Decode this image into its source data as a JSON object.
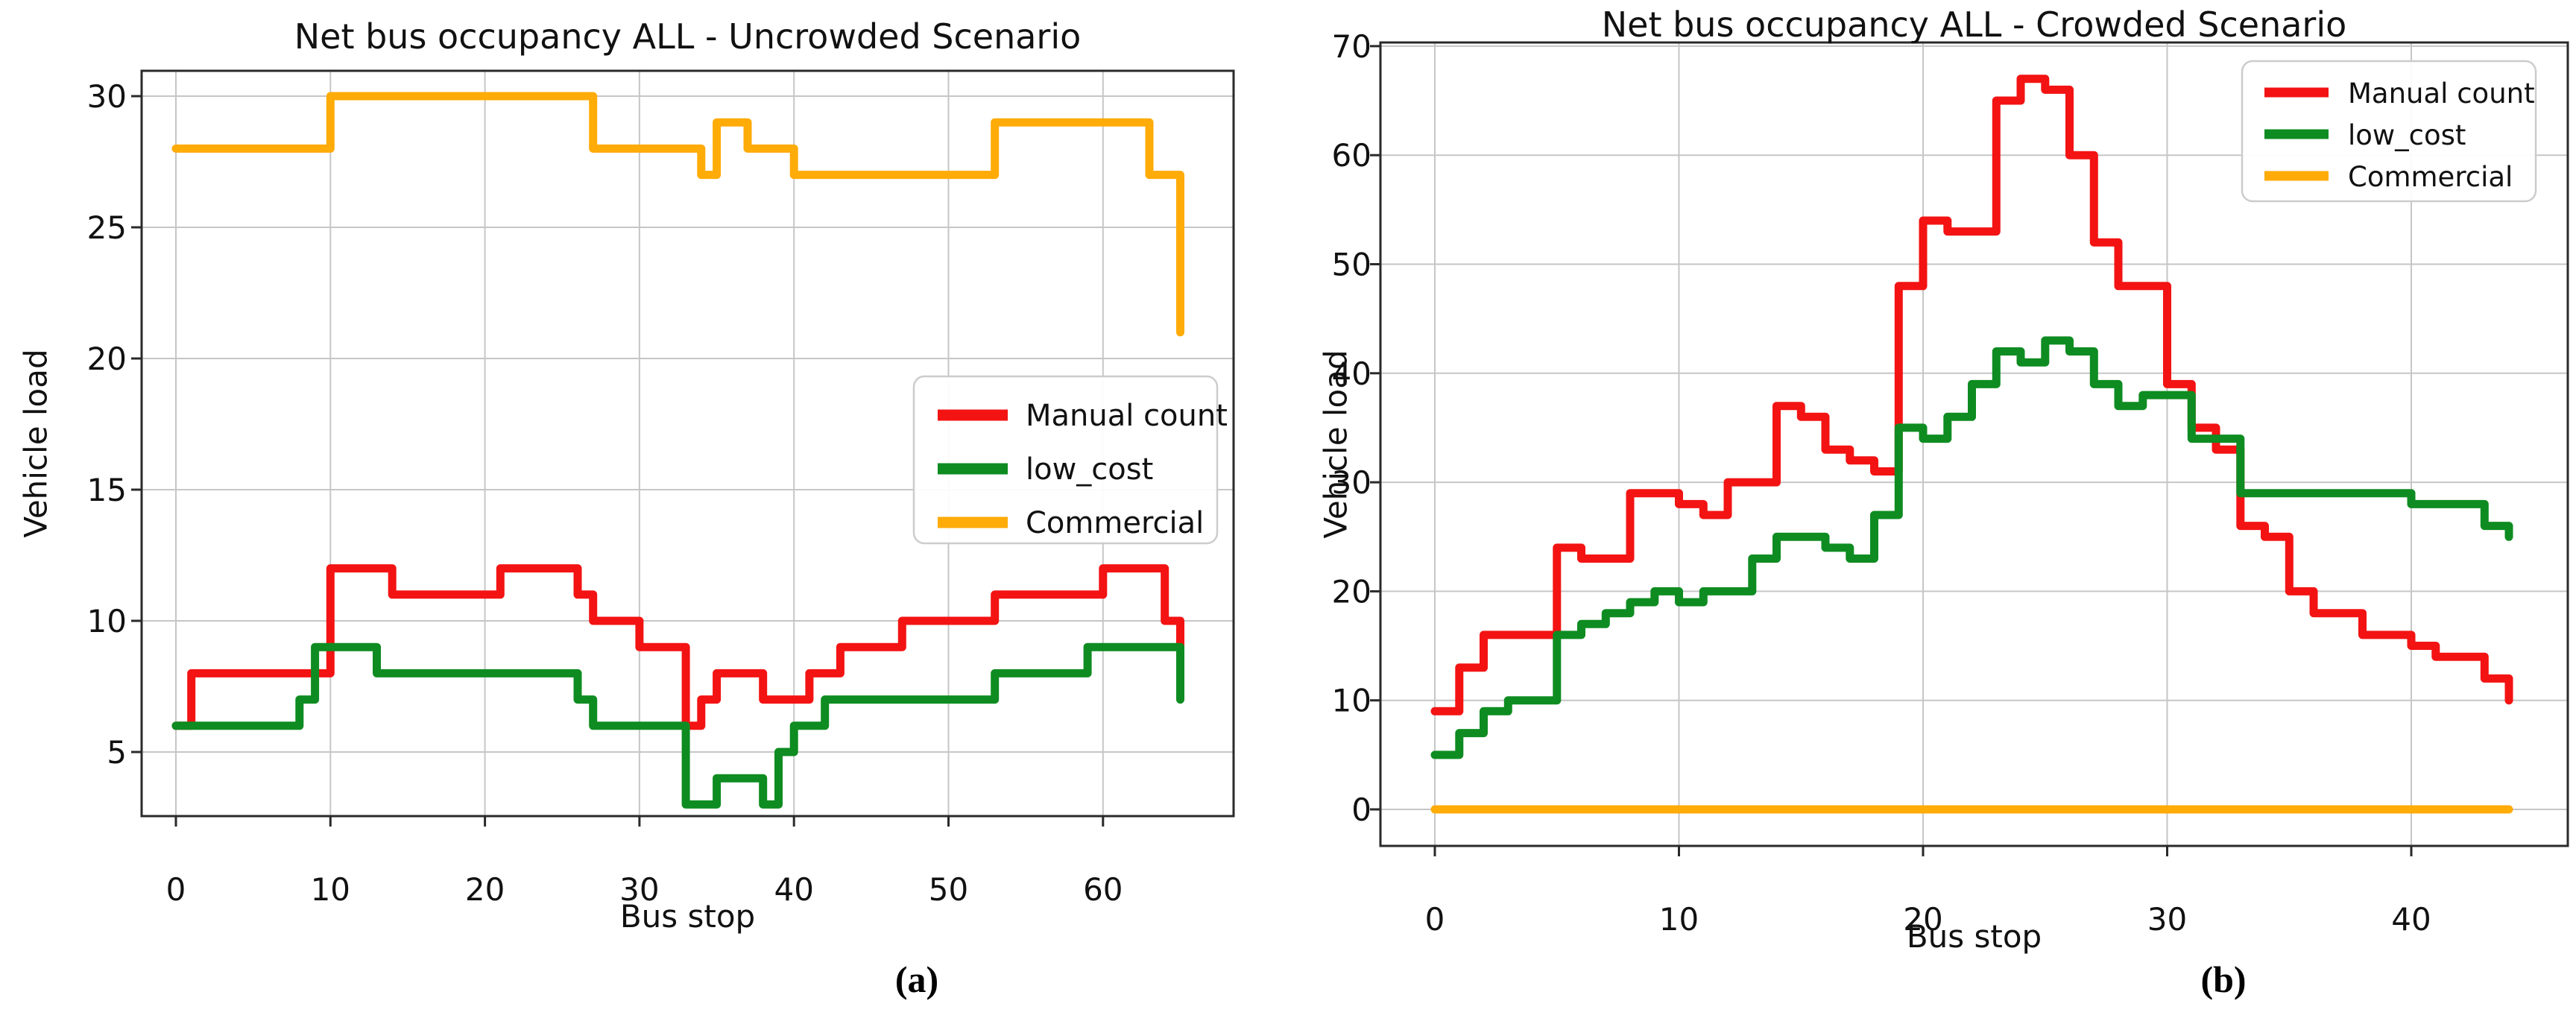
{
  "figure": {
    "caption_a": "(a)",
    "caption_b": "(b)"
  },
  "chart_data": [
    {
      "type": "line",
      "variant": "step-post",
      "title": "Net bus occupancy ALL - Uncrowded Scenario",
      "xlabel": "Bus stop",
      "ylabel": "Vehicle load",
      "x_ticks": [
        0,
        10,
        20,
        30,
        40,
        50,
        60
      ],
      "y_ticks": [
        5,
        10,
        15,
        20,
        25,
        30
      ],
      "xlim": [
        -2.2,
        68.5
      ],
      "ylim": [
        2.5,
        31.0
      ],
      "grid": true,
      "legend_position": "center right",
      "series": [
        {
          "name": "Manual count",
          "color": "#f31313",
          "x": [
            0,
            1,
            10,
            14,
            21,
            26,
            27,
            30,
            33,
            34,
            35,
            38,
            41,
            43,
            47,
            53,
            60,
            64
          ],
          "y": [
            6,
            8,
            12,
            11,
            12,
            11,
            10,
            9,
            6,
            7,
            8,
            7,
            8,
            9,
            10,
            11,
            12,
            10
          ],
          "x_end": 65,
          "y_end": 9
        },
        {
          "name": "low_cost",
          "color": "#0e8c21",
          "x": [
            0,
            8,
            9,
            13,
            26,
            27,
            33,
            35,
            38,
            39,
            40,
            42,
            53,
            59
          ],
          "y": [
            6,
            7,
            9,
            8,
            7,
            6,
            3,
            4,
            3,
            5,
            6,
            7,
            8,
            9
          ],
          "x_end": 65,
          "y_end": 7
        },
        {
          "name": "Commercial",
          "color": "#ffab08",
          "x": [
            0,
            10,
            27,
            34,
            35,
            37,
            40,
            53,
            63
          ],
          "y": [
            28,
            30,
            28,
            27,
            29,
            28,
            27,
            29,
            27
          ],
          "x_end": 65,
          "y_end": 21
        }
      ]
    },
    {
      "type": "line",
      "variant": "step-post",
      "title": "Net bus occupancy ALL - Crowded Scenario",
      "xlabel": "Bus stop",
      "ylabel": "Vehicle load",
      "x_ticks": [
        0,
        10,
        20,
        30,
        40
      ],
      "y_ticks": [
        0,
        10,
        20,
        30,
        40,
        50,
        60,
        70
      ],
      "xlim": [
        -2.2,
        46.4
      ],
      "ylim": [
        -3.3,
        70.3
      ],
      "grid": true,
      "legend_position": "upper right",
      "series": [
        {
          "name": "Manual count",
          "color": "#f31313",
          "x": [
            0,
            1,
            2,
            5,
            6,
            8,
            10,
            11,
            12,
            14,
            15,
            16,
            17,
            18,
            19,
            20,
            21,
            23,
            24,
            25,
            26,
            27,
            28,
            30,
            31,
            32,
            33,
            34,
            35,
            36,
            38,
            40,
            41,
            43
          ],
          "y": [
            9,
            13,
            16,
            24,
            23,
            29,
            28,
            27,
            30,
            37,
            36,
            33,
            32,
            31,
            48,
            54,
            53,
            65,
            67,
            66,
            60,
            52,
            48,
            39,
            35,
            33,
            26,
            25,
            20,
            18,
            16,
            15,
            14,
            12
          ],
          "x_end": 44,
          "y_end": 10
        },
        {
          "name": "low_cost",
          "color": "#0e8c21",
          "x": [
            0,
            1,
            2,
            3,
            5,
            6,
            7,
            8,
            9,
            10,
            11,
            13,
            14,
            16,
            17,
            18,
            19,
            20,
            21,
            22,
            23,
            24,
            25,
            26,
            27,
            28,
            29,
            31,
            33,
            40,
            43
          ],
          "y": [
            5,
            7,
            9,
            10,
            16,
            17,
            18,
            19,
            20,
            19,
            20,
            23,
            25,
            24,
            23,
            27,
            35,
            34,
            36,
            39,
            42,
            41,
            43,
            42,
            39,
            37,
            38,
            34,
            29,
            28,
            26
          ],
          "x_end": 44,
          "y_end": 25
        },
        {
          "name": "Commercial",
          "color": "#ffab08",
          "x": [
            0
          ],
          "y": [
            0
          ],
          "x_end": 44,
          "y_end": 0
        }
      ]
    }
  ]
}
